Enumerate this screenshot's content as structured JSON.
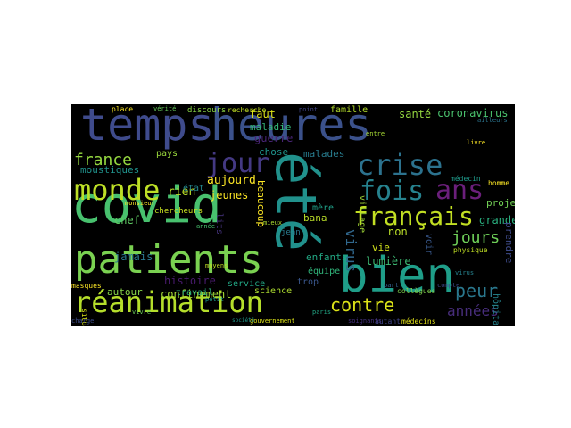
{
  "wordcloud": {
    "background": "#000000",
    "words": [
      {
        "text": "temps",
        "color": "#3f4b8c"
      },
      {
        "text": "heures",
        "color": "#3b518b"
      },
      {
        "text": "covid",
        "color": "#48c16e"
      },
      {
        "text": "été",
        "color": "#21918c"
      },
      {
        "text": "bien",
        "color": "#1f9e89"
      },
      {
        "text": "patients",
        "color": "#7ad151"
      },
      {
        "text": "réanimation",
        "color": "#b5de2b"
      },
      {
        "text": "monde",
        "color": "#bddf26"
      },
      {
        "text": "jour",
        "color": "#443983"
      },
      {
        "text": "crise",
        "color": "#2c728e"
      },
      {
        "text": "ans",
        "color": "#6b1f7b"
      },
      {
        "text": "fois",
        "color": "#26828e"
      },
      {
        "text": "français",
        "color": "#c2df23"
      },
      {
        "text": "jours",
        "color": "#6ece58"
      },
      {
        "text": "peur",
        "color": "#2a788e"
      },
      {
        "text": "contre",
        "color": "#dde318"
      },
      {
        "text": "années",
        "color": "#472d7b"
      },
      {
        "text": "france",
        "color": "#95d840"
      },
      {
        "text": "virus",
        "color": "#31688e"
      },
      {
        "text": "lumière",
        "color": "#3dbc74"
      },
      {
        "text": "beaucoup",
        "color": "#fde725"
      },
      {
        "text": "aujourd",
        "color": "#fde725"
      },
      {
        "text": "jamais",
        "color": "#2a768e"
      },
      {
        "text": "histoire",
        "color": "#481a6c"
      },
      {
        "text": "confinement",
        "color": "#a5db36"
      },
      {
        "text": "travail",
        "color": "#2db27d"
      },
      {
        "text": "autour",
        "color": "#86d549"
      },
      {
        "text": "service",
        "color": "#22a785"
      },
      {
        "text": "science",
        "color": "#addc30"
      },
      {
        "text": "guerre",
        "color": "#482475"
      },
      {
        "text": "maladie",
        "color": "#35b779"
      },
      {
        "text": "chose",
        "color": "#1f948c"
      },
      {
        "text": "faut",
        "color": "#dde318"
      },
      {
        "text": "moustiques",
        "color": "#20928c"
      },
      {
        "text": "rien",
        "color": "#b8de29"
      },
      {
        "text": "chef",
        "color": "#5ec962"
      },
      {
        "text": "enfants",
        "color": "#22a884"
      },
      {
        "text": "malades",
        "color": "#287c8e"
      },
      {
        "text": "jeunes",
        "color": "#fde725"
      },
      {
        "text": "lits",
        "color": "#46337e"
      },
      {
        "text": "état",
        "color": "#24878e"
      },
      {
        "text": "santé",
        "color": "#95d840"
      },
      {
        "text": "coronavirus",
        "color": "#4ac16d"
      },
      {
        "text": "famille",
        "color": "#b5de2b"
      },
      {
        "text": "projet",
        "color": "#73d056"
      },
      {
        "text": "grande",
        "color": "#2ab07f"
      },
      {
        "text": "prendre",
        "color": "#3e4a89"
      },
      {
        "text": "hôpitaux",
        "color": "#25848e"
      },
      {
        "text": "village",
        "color": "#a2da37"
      },
      {
        "text": "mère",
        "color": "#1fa088"
      },
      {
        "text": "équipe",
        "color": "#31b57b"
      },
      {
        "text": "non",
        "color": "#bade28"
      },
      {
        "text": "vie",
        "color": "#d2e21b"
      },
      {
        "text": "voir",
        "color": "#38588c"
      },
      {
        "text": "bana",
        "color": "#bade28"
      },
      {
        "text": "jean",
        "color": "#297a8e"
      },
      {
        "text": "médecin",
        "color": "#1f9a8a"
      },
      {
        "text": "médecins",
        "color": "#e5e419"
      },
      {
        "text": "collègues",
        "color": "#7fd34e"
      },
      {
        "text": "trop",
        "color": "#39568c"
      },
      {
        "text": "autant",
        "color": "#404588"
      },
      {
        "text": "homme",
        "color": "#fde725"
      },
      {
        "text": "physique",
        "color": "#c0df25"
      },
      {
        "text": "pays",
        "color": "#9bd93c"
      },
      {
        "text": "chercheurs",
        "color": "#c8e020"
      },
      {
        "text": "discours",
        "color": "#8bd646"
      },
      {
        "text": "recherche",
        "color": "#c2df23"
      },
      {
        "text": "place",
        "color": "#fde725"
      },
      {
        "text": "vérité",
        "color": "#67cc5c"
      },
      {
        "text": "masques",
        "color": "#fde725"
      },
      {
        "text": "situation",
        "color": "#d8e219"
      },
      {
        "text": "charge",
        "color": "#3d4d8a"
      },
      {
        "text": "point",
        "color": "#414487"
      },
      {
        "text": "petit",
        "color": "#1e9b8a"
      },
      {
        "text": "mieux",
        "color": "#addc30"
      },
      {
        "text": "part",
        "color": "#34608d"
      },
      {
        "text": "paris",
        "color": "#22a785"
      },
      {
        "text": "gouvernement",
        "color": "#dde318"
      },
      {
        "text": "soignants",
        "color": "#46327e"
      },
      {
        "text": "compte",
        "color": "#3e4989"
      },
      {
        "text": "ailleurs",
        "color": "#2b748e"
      },
      {
        "text": "vivre",
        "color": "#6ccd5a"
      },
      {
        "text": "virus",
        "color": "#26828e"
      },
      {
        "text": "moyens",
        "color": "#c0df25"
      },
      {
        "text": "entre",
        "color": "#a8db34"
      },
      {
        "text": "nuit",
        "color": "#287d8e"
      },
      {
        "text": "livre",
        "color": "#fde725"
      },
      {
        "text": "année",
        "color": "#48c16e"
      },
      {
        "text": "monsieur",
        "color": "#fde725"
      },
      {
        "text": "société",
        "color": "#1f988b"
      }
    ]
  }
}
